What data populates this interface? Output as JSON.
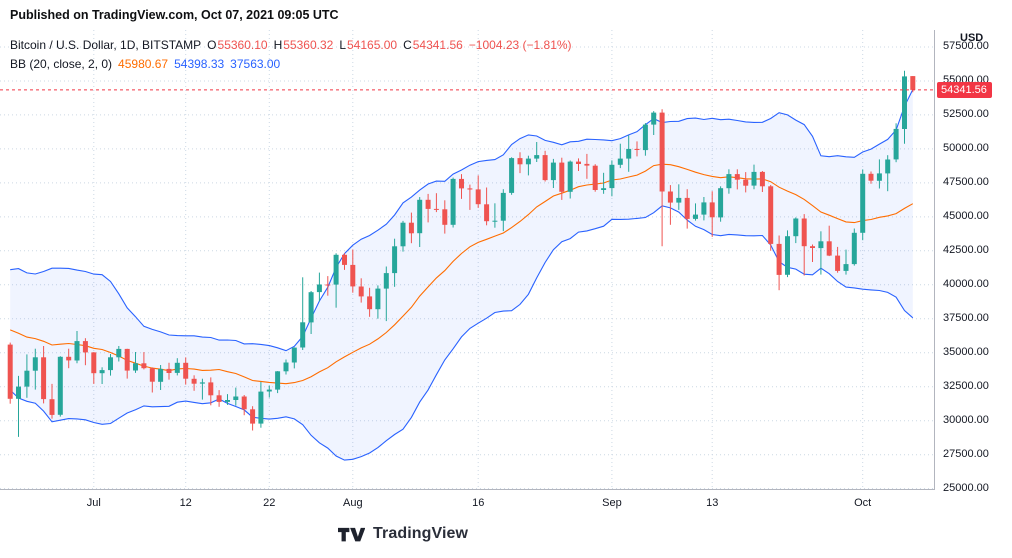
{
  "published_bar": {
    "text": "Published on TradingView.com, Oct 07, 2021 09:05 UTC"
  },
  "legend": {
    "symbol": "Bitcoin / U.S. Dollar, 1D, BITSTAMP",
    "ohlc_items": [
      {
        "label": "O",
        "value": "55360.10"
      },
      {
        "label": "H",
        "value": "55360.32"
      },
      {
        "label": "L",
        "value": "54165.00"
      },
      {
        "label": "C",
        "value": "54341.56"
      }
    ],
    "change": "−1004.23 (−1.81%)",
    "bb": {
      "label": "BB (20, close, 2, 0)",
      "basis": "45980.67",
      "upper": "54398.33",
      "lower": "37563.00"
    }
  },
  "price_axis": {
    "unit": "USD",
    "last_price": "54341.56",
    "last_price_value": 54341.56
  },
  "watermark": {
    "text": "TradingView"
  },
  "colors": {
    "up": "#26a69a",
    "down": "#ef5350",
    "bb_band": "#2962ff",
    "bb_basis": "#ff6d00",
    "last_price": "#f23645",
    "grid": "#ccd8e4",
    "axis_border": "#b2b5be",
    "axis_text": "#131722"
  },
  "chart_data": {
    "type": "candlestick",
    "title": "Bitcoin / U.S. Dollar, 1D, BITSTAMP",
    "symbol": "BTC/USD",
    "exchange": "BITSTAMP",
    "interval": "1D",
    "indicator": {
      "name": "BB",
      "period": 20,
      "source": "close",
      "stddev": 2,
      "offset": 0
    },
    "ylim": [
      24900,
      58750
    ],
    "price_tick_values": [
      57500,
      55000,
      52500,
      50000,
      47500,
      45000,
      42500,
      40000,
      37500,
      35000,
      32500,
      30000,
      27500,
      25000
    ],
    "time_ticks": [
      {
        "label": "Jul",
        "index": 10
      },
      {
        "label": "12",
        "index": 21
      },
      {
        "label": "22",
        "index": 31
      },
      {
        "label": "Aug",
        "index": 41
      },
      {
        "label": "16",
        "index": 56
      },
      {
        "label": "Sep",
        "index": 72
      },
      {
        "label": "13",
        "index": 84
      },
      {
        "label": "Oct",
        "index": 102
      }
    ],
    "bb_warmup_closes": [
      36684,
      37575,
      39208,
      36894,
      35551,
      35796,
      33575,
      33415,
      37389,
      36680,
      37332,
      35546,
      39020,
      40526,
      40158,
      38349,
      38093,
      35819,
      35483,
      35600
    ],
    "candles": [
      [
        "2021-06-21",
        35600,
        35750,
        31251,
        31608
      ],
      [
        "2021-06-22",
        31608,
        33298,
        28805,
        32509
      ],
      [
        "2021-06-23",
        32509,
        34881,
        31683,
        33678
      ],
      [
        "2021-06-24",
        33678,
        35297,
        32286,
        34663
      ],
      [
        "2021-06-25",
        34663,
        35500,
        31275,
        31584
      ],
      [
        "2021-06-26",
        31584,
        32711,
        30151,
        30432
      ],
      [
        "2021-06-27",
        30432,
        34749,
        30300,
        34700
      ],
      [
        "2021-06-28",
        34700,
        35301,
        33862,
        34434
      ],
      [
        "2021-06-29",
        34434,
        36600,
        34225,
        35858
      ],
      [
        "2021-06-30",
        35858,
        36074,
        34086,
        35026
      ],
      [
        "2021-07-01",
        35026,
        35048,
        32711,
        33498
      ],
      [
        "2021-07-02",
        33498,
        33928,
        32699,
        33726
      ],
      [
        "2021-07-03",
        33726,
        34909,
        33316,
        34665
      ],
      [
        "2021-07-04",
        34665,
        35500,
        34357,
        35284
      ],
      [
        "2021-07-05",
        35284,
        35288,
        33100,
        33690
      ],
      [
        "2021-07-06",
        33690,
        35057,
        33516,
        34220
      ],
      [
        "2021-07-07",
        34220,
        35047,
        33777,
        33862
      ],
      [
        "2021-07-08",
        33862,
        33923,
        32077,
        32867
      ],
      [
        "2021-07-09",
        32867,
        34100,
        32261,
        33815
      ],
      [
        "2021-07-10",
        33815,
        34262,
        33022,
        33515
      ],
      [
        "2021-07-11",
        33515,
        34600,
        33335,
        34259
      ],
      [
        "2021-07-12",
        34259,
        34660,
        32658,
        33086
      ],
      [
        "2021-07-13",
        33086,
        33340,
        32202,
        32729
      ],
      [
        "2021-07-14",
        32729,
        33090,
        31550,
        32820
      ],
      [
        "2021-07-15",
        32820,
        33185,
        31133,
        31868
      ],
      [
        "2021-07-16",
        31868,
        32249,
        31020,
        31383
      ],
      [
        "2021-07-17",
        31383,
        31955,
        31164,
        31520
      ],
      [
        "2021-07-18",
        31520,
        32435,
        31108,
        31778
      ],
      [
        "2021-07-19",
        31778,
        31890,
        30407,
        30839
      ],
      [
        "2021-07-20",
        30839,
        31063,
        29278,
        29790
      ],
      [
        "2021-07-21",
        29790,
        32858,
        29482,
        32144
      ],
      [
        "2021-07-22",
        32144,
        32591,
        31708,
        32287
      ],
      [
        "2021-07-23",
        32287,
        33650,
        32030,
        33634
      ],
      [
        "2021-07-24",
        33634,
        34500,
        33401,
        34283
      ],
      [
        "2021-07-25",
        34283,
        35398,
        33851,
        35381
      ],
      [
        "2021-07-26",
        35381,
        40550,
        35205,
        37237
      ],
      [
        "2021-07-27",
        37237,
        39542,
        36383,
        39457
      ],
      [
        "2021-07-28",
        39457,
        40900,
        38772,
        40019
      ],
      [
        "2021-07-29",
        40019,
        40640,
        39200,
        40016
      ],
      [
        "2021-07-30",
        40016,
        42316,
        38313,
        42206
      ],
      [
        "2021-07-31",
        42206,
        42316,
        41100,
        41461
      ],
      [
        "2021-08-01",
        41461,
        42599,
        39422,
        39878
      ],
      [
        "2021-08-02",
        39878,
        40480,
        38690,
        39147
      ],
      [
        "2021-08-03",
        39147,
        39780,
        37642,
        38207
      ],
      [
        "2021-08-04",
        38207,
        39958,
        37508,
        39723
      ],
      [
        "2021-08-05",
        39723,
        41350,
        37332,
        40862
      ],
      [
        "2021-08-06",
        40862,
        43392,
        39853,
        42836
      ],
      [
        "2021-08-07",
        42836,
        44700,
        42446,
        44572
      ],
      [
        "2021-08-08",
        44572,
        45310,
        43061,
        43794
      ],
      [
        "2021-08-09",
        43794,
        46454,
        42779,
        46253
      ],
      [
        "2021-08-10",
        46253,
        46690,
        44589,
        45584
      ],
      [
        "2021-08-11",
        45584,
        46743,
        45350,
        45556
      ],
      [
        "2021-08-12",
        45556,
        46218,
        43770,
        44417
      ],
      [
        "2021-08-13",
        44417,
        47886,
        44217,
        47794
      ],
      [
        "2021-08-14",
        47794,
        48144,
        46324,
        47096
      ],
      [
        "2021-08-15",
        47096,
        47372,
        45514,
        47018
      ],
      [
        "2021-08-16",
        47018,
        48053,
        45660,
        45927
      ],
      [
        "2021-08-17",
        45927,
        47160,
        44376,
        44686
      ],
      [
        "2021-08-18",
        44686,
        46000,
        44203,
        44714
      ],
      [
        "2021-08-19",
        44714,
        47033,
        43948,
        46760
      ],
      [
        "2021-08-20",
        46760,
        49380,
        46622,
        49322
      ],
      [
        "2021-08-21",
        49322,
        49757,
        48222,
        48869
      ],
      [
        "2021-08-22",
        48869,
        49500,
        48050,
        49290
      ],
      [
        "2021-08-23",
        49290,
        50505,
        49038,
        49546
      ],
      [
        "2021-08-24",
        49546,
        49862,
        47600,
        47706
      ],
      [
        "2021-08-25",
        47706,
        49264,
        47126,
        48994
      ],
      [
        "2021-08-26",
        48994,
        49352,
        46250,
        46843
      ],
      [
        "2021-08-27",
        46843,
        49149,
        46348,
        49069
      ],
      [
        "2021-08-28",
        49069,
        49299,
        48372,
        48895
      ],
      [
        "2021-08-29",
        48895,
        49632,
        47800,
        48767
      ],
      [
        "2021-08-30",
        48767,
        48877,
        46853,
        46982
      ],
      [
        "2021-08-31",
        46982,
        48240,
        46700,
        47112
      ],
      [
        "2021-09-01",
        47112,
        49156,
        46512,
        48830
      ],
      [
        "2021-09-02",
        48830,
        50380,
        48591,
        49288
      ],
      [
        "2021-09-03",
        49288,
        51000,
        48316,
        49999
      ],
      [
        "2021-09-04",
        49999,
        50550,
        49450,
        49915
      ],
      [
        "2021-09-05",
        49915,
        51900,
        49500,
        51789
      ],
      [
        "2021-09-06",
        51789,
        52780,
        51022,
        52670
      ],
      [
        "2021-09-07",
        52670,
        52920,
        42843,
        46863
      ],
      [
        "2021-09-08",
        46863,
        47340,
        44412,
        46048
      ],
      [
        "2021-09-09",
        46048,
        47399,
        45511,
        46395
      ],
      [
        "2021-09-10",
        46395,
        47033,
        44132,
        44850
      ],
      [
        "2021-09-11",
        44850,
        45987,
        44722,
        45166
      ],
      [
        "2021-09-12",
        45166,
        46460,
        44742,
        46063
      ],
      [
        "2021-09-13",
        46063,
        46880,
        43525,
        44963
      ],
      [
        "2021-09-14",
        44963,
        47250,
        44640,
        47111
      ],
      [
        "2021-09-15",
        47111,
        48500,
        46701,
        48147
      ],
      [
        "2021-09-16",
        48147,
        48500,
        47021,
        47737
      ],
      [
        "2021-09-17",
        47737,
        48296,
        46796,
        47299
      ],
      [
        "2021-09-18",
        47299,
        48843,
        47030,
        48306
      ],
      [
        "2021-09-19",
        48306,
        48372,
        46829,
        47250
      ],
      [
        "2021-09-20",
        47250,
        47347,
        42500,
        43013
      ],
      [
        "2021-09-21",
        43013,
        43627,
        39600,
        40734
      ],
      [
        "2021-09-22",
        40734,
        44000,
        40565,
        43576
      ],
      [
        "2021-09-23",
        43576,
        44957,
        43072,
        44881
      ],
      [
        "2021-09-24",
        44881,
        45200,
        40683,
        42839
      ],
      [
        "2021-09-25",
        42839,
        42966,
        41676,
        42705
      ],
      [
        "2021-09-26",
        42705,
        43937,
        40750,
        43204
      ],
      [
        "2021-09-27",
        43204,
        44350,
        42111,
        42150
      ],
      [
        "2021-09-28",
        42150,
        42787,
        40888,
        41026
      ],
      [
        "2021-09-29",
        41026,
        42590,
        40753,
        41524
      ],
      [
        "2021-09-30",
        41524,
        44141,
        41410,
        43824
      ],
      [
        "2021-10-01",
        43824,
        48495,
        43283,
        48165
      ],
      [
        "2021-10-02",
        48165,
        48336,
        47430,
        47659
      ],
      [
        "2021-10-03",
        47659,
        49228,
        47088,
        48200
      ],
      [
        "2021-10-04",
        48200,
        49536,
        46891,
        49224
      ],
      [
        "2021-10-05",
        49224,
        51886,
        49022,
        51471
      ],
      [
        "2021-10-06",
        51471,
        55750,
        50382,
        55339
      ],
      [
        "2021-10-07",
        55360.1,
        55360.32,
        54165.0,
        54341.56
      ]
    ]
  }
}
